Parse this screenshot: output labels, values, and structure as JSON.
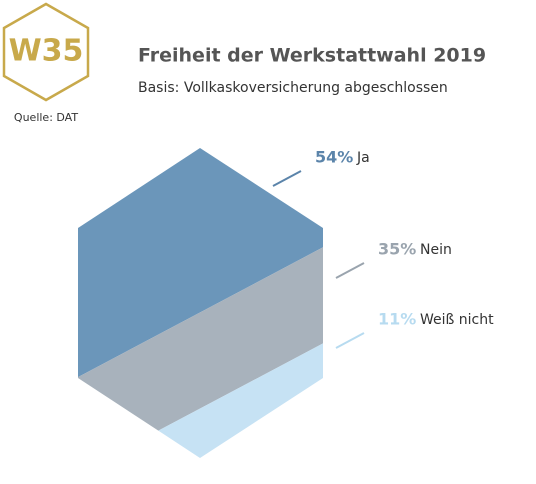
{
  "badge": "W35",
  "source": "Quelle: DAT",
  "chart_data": {
    "type": "hexagon",
    "title": "Freiheit der Werkstattwahl 2019",
    "subtitle": "Basis: Vollkaskoversicherung abgeschlossen",
    "categories": [
      "Ja",
      "Nein",
      "Weiß nicht"
    ],
    "values": [
      54,
      35,
      11
    ],
    "value_labels": [
      "54%",
      "35%",
      "11%"
    ],
    "colors": [
      "#6b96ba",
      "#a8b2bc",
      "#c6e2f4"
    ],
    "label_colors": [
      "#5b84aa",
      "#9aa4ae",
      "#b7dbf0"
    ]
  }
}
